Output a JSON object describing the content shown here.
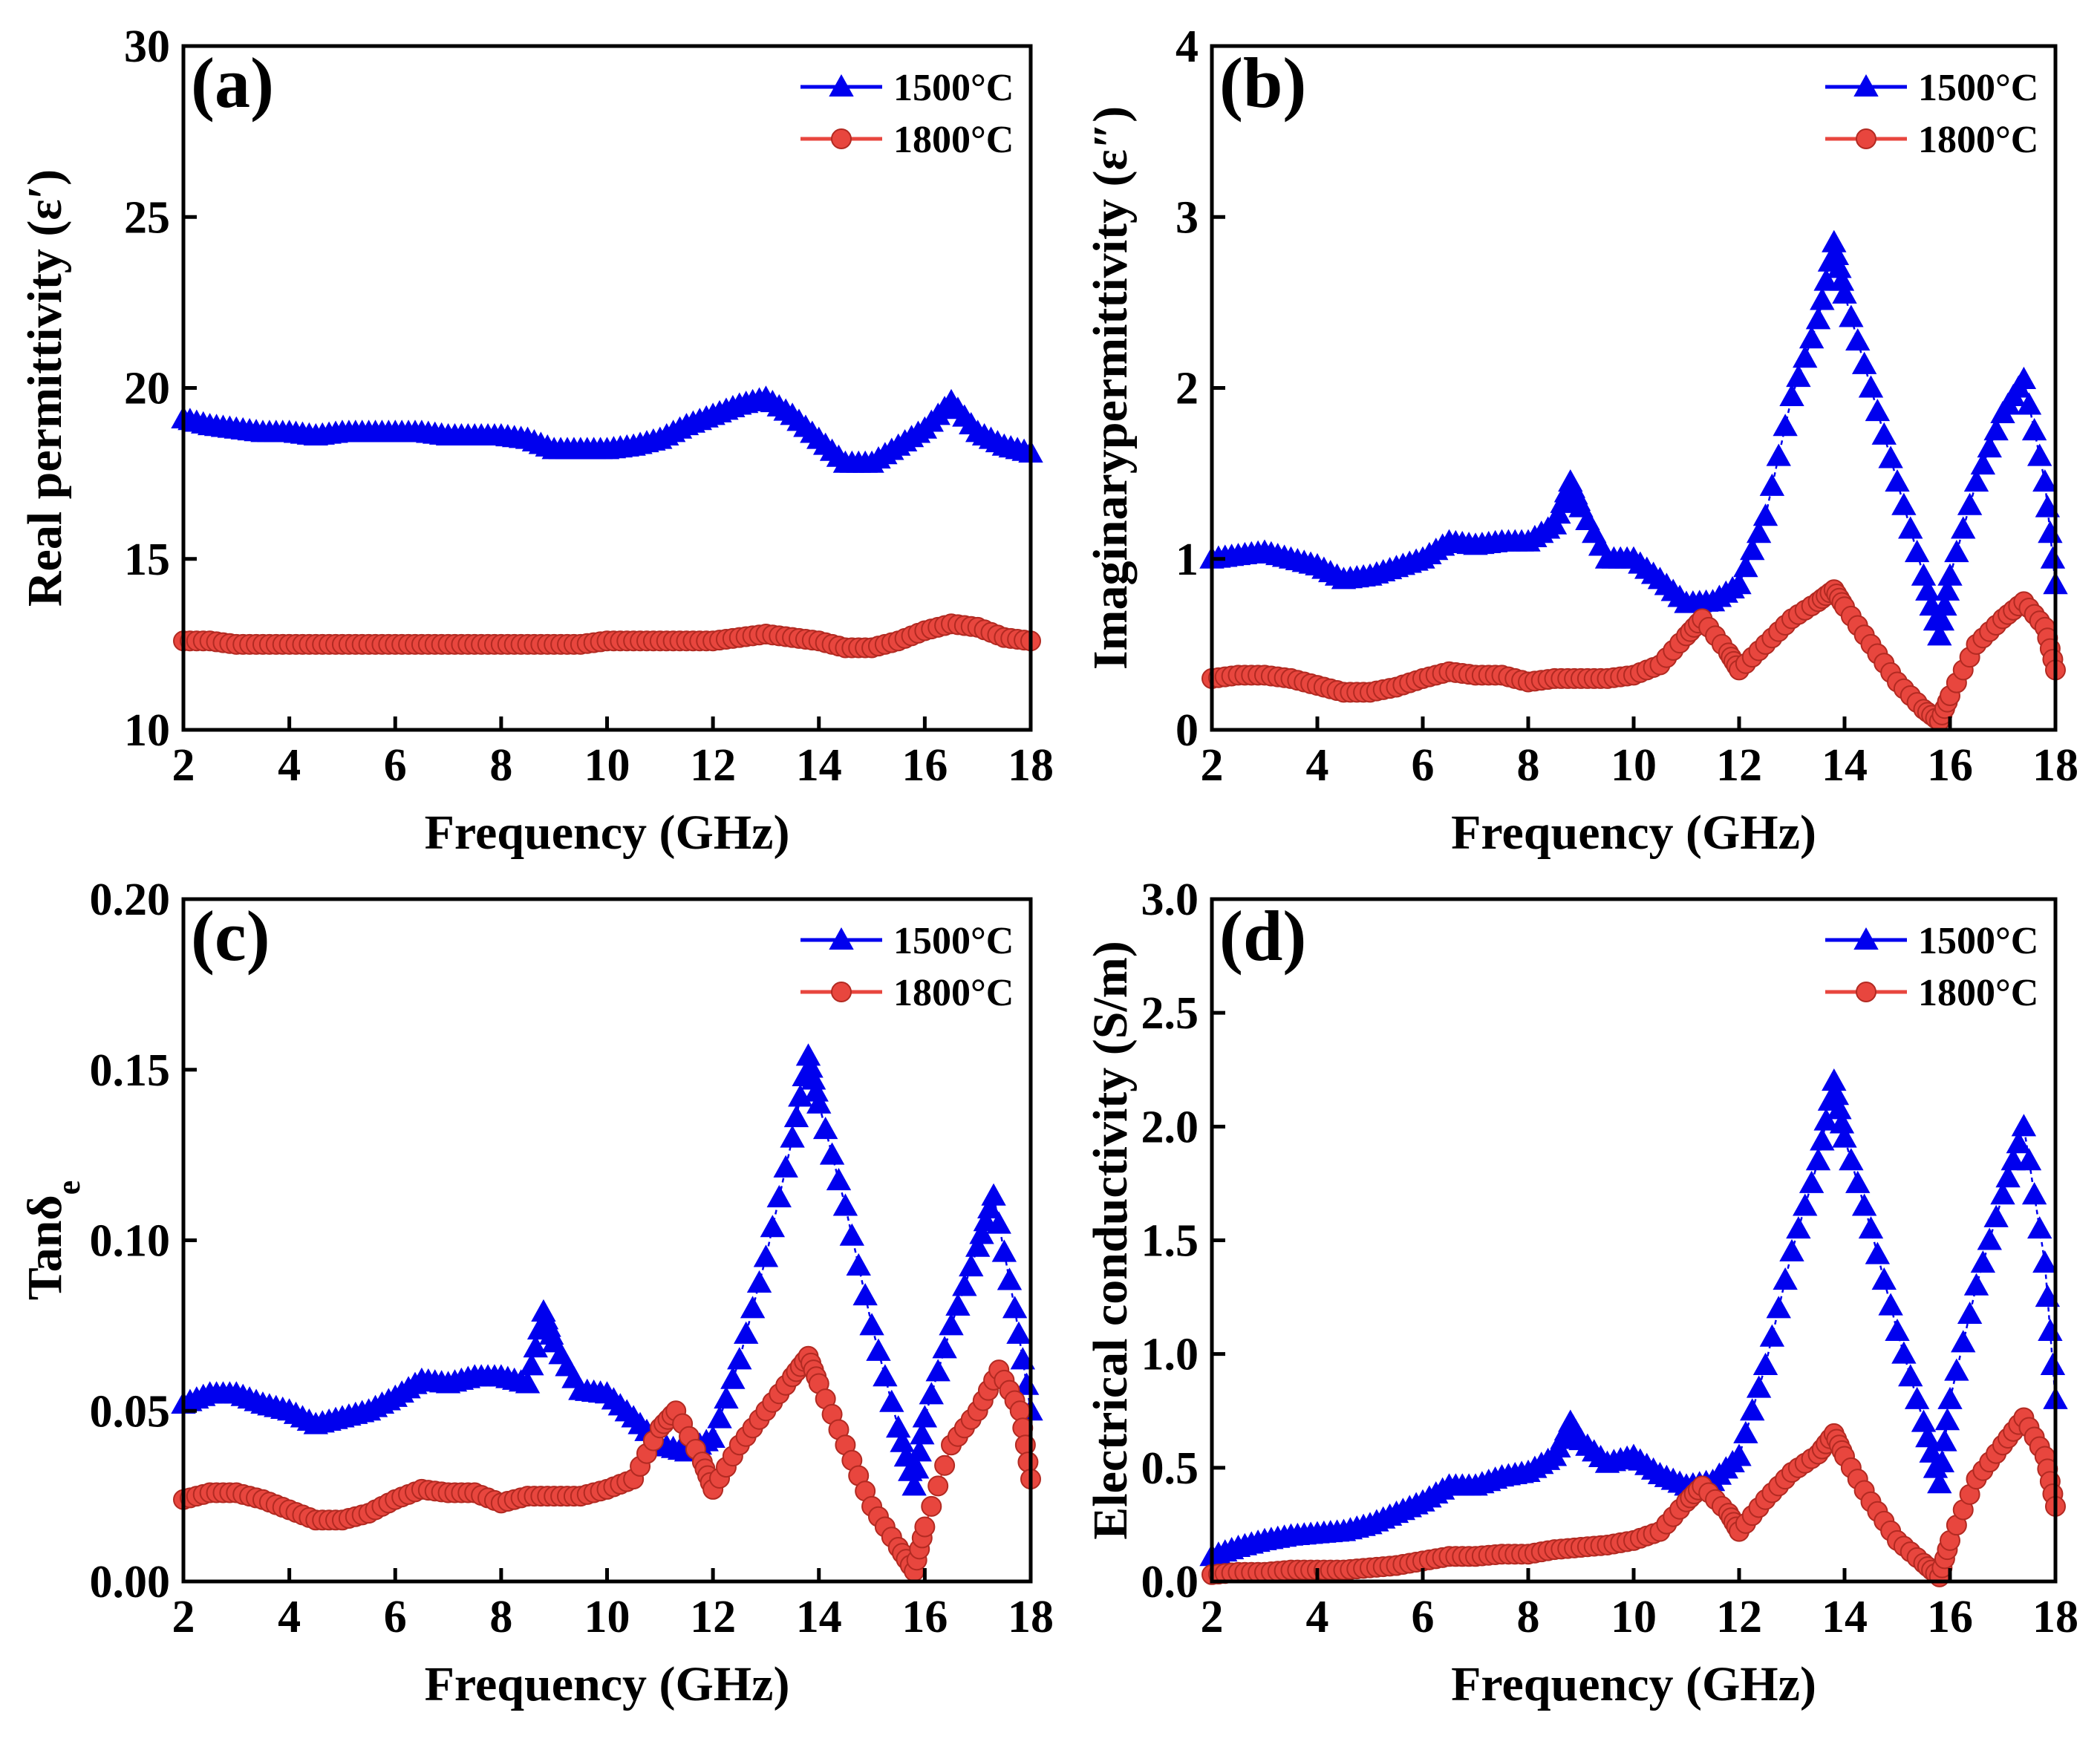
{
  "chart_data": [
    {
      "type": "line",
      "panel_label": "(a)",
      "xlabel": "Frequency (GHz)",
      "ylabel": "Real  permittivity (ε′)",
      "xlim": [
        2,
        18
      ],
      "ylim": [
        10,
        30
      ],
      "xticks": [
        "2",
        "4",
        "6",
        "8",
        "10",
        "12",
        "14",
        "16",
        "18"
      ],
      "yticks": [
        "10",
        "15",
        "20",
        "25",
        "30"
      ],
      "legend_position": "top-right",
      "series": [
        {
          "name": "1500°C",
          "color": "#0000ee",
          "marker": "triangle",
          "x": [
            2,
            2.5,
            3,
            3.5,
            4,
            4.5,
            5,
            5.5,
            6,
            6.5,
            7,
            7.5,
            8,
            8.5,
            9,
            9.5,
            10,
            10.5,
            11,
            11.5,
            12,
            12.5,
            13,
            13.5,
            14,
            14.5,
            15,
            15.5,
            16,
            16.5,
            17,
            17.5,
            18
          ],
          "y": [
            19.1,
            18.9,
            18.8,
            18.7,
            18.7,
            18.6,
            18.7,
            18.7,
            18.7,
            18.7,
            18.6,
            18.6,
            18.6,
            18.5,
            18.2,
            18.2,
            18.2,
            18.3,
            18.5,
            18.9,
            19.2,
            19.5,
            19.7,
            19.2,
            18.5,
            17.8,
            17.8,
            18.3,
            18.8,
            19.6,
            18.7,
            18.3,
            18.1
          ]
        },
        {
          "name": "1800°C",
          "color": "#e8463e",
          "marker": "circle",
          "x": [
            2,
            2.5,
            3,
            3.5,
            4,
            4.5,
            5,
            5.5,
            6,
            6.5,
            7,
            7.5,
            8,
            8.5,
            9,
            9.5,
            10,
            10.5,
            11,
            11.5,
            12,
            12.5,
            13,
            13.5,
            14,
            14.5,
            15,
            15.5,
            16,
            16.5,
            17,
            17.5,
            18
          ],
          "y": [
            12.6,
            12.6,
            12.5,
            12.5,
            12.5,
            12.5,
            12.5,
            12.5,
            12.5,
            12.5,
            12.5,
            12.5,
            12.5,
            12.5,
            12.5,
            12.5,
            12.6,
            12.6,
            12.6,
            12.6,
            12.6,
            12.7,
            12.8,
            12.7,
            12.6,
            12.4,
            12.4,
            12.6,
            12.9,
            13.1,
            13.0,
            12.7,
            12.6
          ]
        }
      ]
    },
    {
      "type": "line",
      "panel_label": "(b)",
      "xlabel": "Frequency (GHz)",
      "ylabel": "Imaginarypermittivity (ε″)",
      "xlim": [
        2,
        18
      ],
      "ylim": [
        0,
        4
      ],
      "xticks": [
        "2",
        "4",
        "6",
        "8",
        "10",
        "12",
        "14",
        "16",
        "18"
      ],
      "yticks": [
        "0",
        "1",
        "2",
        "3",
        "4"
      ],
      "legend_position": "top-right",
      "series": [
        {
          "name": "1500°C",
          "color": "#0000ee",
          "marker": "triangle",
          "x": [
            2,
            2.5,
            3,
            3.5,
            4,
            4.5,
            5,
            5.5,
            6,
            6.5,
            7,
            7.5,
            8,
            8.5,
            8.8,
            9,
            9.5,
            10,
            10.5,
            11,
            11.5,
            12,
            12.5,
            13,
            13.5,
            13.8,
            14,
            14.5,
            15,
            15.5,
            15.8,
            16,
            16.5,
            17,
            17.4,
            17.8,
            18
          ],
          "y": [
            1.0,
            1.02,
            1.04,
            1.0,
            0.96,
            0.88,
            0.9,
            0.95,
            1.0,
            1.1,
            1.08,
            1.1,
            1.1,
            1.2,
            1.45,
            1.3,
            1.0,
            1.0,
            0.88,
            0.74,
            0.75,
            0.85,
            1.25,
            1.95,
            2.4,
            2.85,
            2.55,
            2.0,
            1.45,
            0.9,
            0.55,
            0.9,
            1.45,
            1.85,
            2.05,
            1.45,
            0.85
          ]
        },
        {
          "name": "1800°C",
          "color": "#e8463e",
          "marker": "circle",
          "x": [
            2,
            2.5,
            3,
            3.5,
            4,
            4.5,
            5,
            5.5,
            6,
            6.5,
            7,
            7.5,
            8,
            8.5,
            9,
            9.5,
            10,
            10.5,
            11,
            11.3,
            11.8,
            12,
            12.5,
            13,
            13.5,
            13.8,
            14,
            14.5,
            15,
            15.5,
            15.8,
            16,
            16.5,
            17,
            17.4,
            17.8,
            18
          ],
          "y": [
            0.3,
            0.32,
            0.32,
            0.3,
            0.26,
            0.22,
            0.22,
            0.25,
            0.3,
            0.34,
            0.32,
            0.32,
            0.28,
            0.3,
            0.3,
            0.3,
            0.32,
            0.38,
            0.55,
            0.65,
            0.45,
            0.35,
            0.5,
            0.65,
            0.75,
            0.82,
            0.72,
            0.5,
            0.28,
            0.12,
            0.05,
            0.2,
            0.5,
            0.65,
            0.75,
            0.6,
            0.35
          ]
        }
      ]
    },
    {
      "type": "line",
      "panel_label": "(c)",
      "xlabel": "Frequency (GHz)",
      "ylabel": "Tanδ",
      "ylabel_subscript": "e",
      "xlim": [
        2,
        18
      ],
      "ylim": [
        0,
        0.2
      ],
      "xticks": [
        "2",
        "4",
        "6",
        "8",
        "10",
        "12",
        "14",
        "16",
        "18"
      ],
      "yticks": [
        "0.00",
        "0.05",
        "0.10",
        "0.15",
        "0.20"
      ],
      "legend_position": "top-right",
      "series": [
        {
          "name": "1500°C",
          "color": "#0000ee",
          "marker": "triangle",
          "x": [
            2,
            2.5,
            3,
            3.5,
            4,
            4.5,
            5,
            5.5,
            6,
            6.5,
            7,
            7.5,
            8,
            8.5,
            8.8,
            9,
            9.5,
            10,
            10.5,
            11,
            11.5,
            12,
            12.5,
            13,
            13.5,
            13.8,
            14,
            14.5,
            15,
            15.5,
            15.8,
            16,
            16.5,
            17,
            17.3,
            17.7,
            18
          ],
          "y": [
            0.052,
            0.055,
            0.055,
            0.052,
            0.05,
            0.046,
            0.048,
            0.05,
            0.054,
            0.059,
            0.058,
            0.06,
            0.06,
            0.058,
            0.079,
            0.07,
            0.056,
            0.055,
            0.048,
            0.04,
            0.038,
            0.042,
            0.065,
            0.095,
            0.13,
            0.154,
            0.14,
            0.11,
            0.075,
            0.045,
            0.028,
            0.048,
            0.075,
            0.098,
            0.113,
            0.08,
            0.05
          ]
        },
        {
          "name": "1800°C",
          "color": "#e8463e",
          "marker": "circle",
          "x": [
            2,
            2.5,
            3,
            3.5,
            4,
            4.5,
            5,
            5.5,
            6,
            6.5,
            7,
            7.5,
            8,
            8.5,
            9,
            9.5,
            10,
            10.5,
            11,
            11.3,
            11.8,
            12,
            12.5,
            13,
            13.5,
            13.8,
            14,
            14.5,
            15,
            15.5,
            15.8,
            16,
            16.5,
            17,
            17.4,
            17.8,
            18
          ],
          "y": [
            0.024,
            0.026,
            0.026,
            0.024,
            0.021,
            0.018,
            0.018,
            0.02,
            0.024,
            0.027,
            0.026,
            0.026,
            0.023,
            0.025,
            0.025,
            0.025,
            0.027,
            0.03,
            0.045,
            0.05,
            0.035,
            0.027,
            0.04,
            0.05,
            0.06,
            0.066,
            0.058,
            0.04,
            0.022,
            0.01,
            0.003,
            0.016,
            0.04,
            0.05,
            0.062,
            0.05,
            0.03
          ]
        }
      ]
    },
    {
      "type": "line",
      "panel_label": "(d)",
      "xlabel": "Frequency (GHz)",
      "ylabel": "Electrical conductivity (S/m)",
      "xlim": [
        2,
        18
      ],
      "ylim": [
        0,
        3.0
      ],
      "xticks": [
        "2",
        "4",
        "6",
        "8",
        "10",
        "12",
        "14",
        "16",
        "18"
      ],
      "yticks": [
        "0.0",
        "0.5",
        "1.0",
        "1.5",
        "2.0",
        "2.5",
        "3.0"
      ],
      "legend_position": "top-right",
      "series": [
        {
          "name": "1500°C",
          "color": "#0000ee",
          "marker": "triangle",
          "x": [
            2,
            2.5,
            3,
            3.5,
            4,
            4.5,
            5,
            5.5,
            6,
            6.5,
            7,
            7.5,
            8,
            8.5,
            8.8,
            9,
            9.5,
            10,
            10.5,
            11,
            11.5,
            12,
            12.5,
            13,
            13.5,
            13.8,
            14,
            14.5,
            15,
            15.5,
            15.8,
            16,
            16.5,
            17,
            17.4,
            17.8,
            18
          ],
          "y": [
            0.11,
            0.15,
            0.18,
            0.2,
            0.21,
            0.22,
            0.25,
            0.3,
            0.35,
            0.42,
            0.42,
            0.46,
            0.48,
            0.55,
            0.7,
            0.62,
            0.52,
            0.55,
            0.47,
            0.42,
            0.44,
            0.55,
            0.95,
            1.45,
            1.85,
            2.2,
            1.95,
            1.55,
            1.1,
            0.7,
            0.43,
            0.8,
            1.3,
            1.7,
            2.0,
            1.4,
            0.8
          ]
        },
        {
          "name": "1800°C",
          "color": "#e8463e",
          "marker": "circle",
          "x": [
            2,
            2.5,
            3,
            3.5,
            4,
            4.5,
            5,
            5.5,
            6,
            6.5,
            7,
            7.5,
            8,
            8.5,
            9,
            9.5,
            10,
            10.5,
            11,
            11.3,
            11.8,
            12,
            12.5,
            13,
            13.5,
            13.8,
            14,
            14.5,
            15,
            15.5,
            15.8,
            16,
            16.5,
            17,
            17.4,
            17.8,
            18
          ],
          "y": [
            0.03,
            0.04,
            0.04,
            0.05,
            0.05,
            0.05,
            0.06,
            0.07,
            0.09,
            0.11,
            0.11,
            0.12,
            0.12,
            0.14,
            0.15,
            0.16,
            0.18,
            0.22,
            0.35,
            0.42,
            0.3,
            0.22,
            0.36,
            0.48,
            0.56,
            0.65,
            0.55,
            0.35,
            0.18,
            0.08,
            0.02,
            0.18,
            0.45,
            0.6,
            0.72,
            0.55,
            0.33
          ]
        }
      ]
    }
  ]
}
